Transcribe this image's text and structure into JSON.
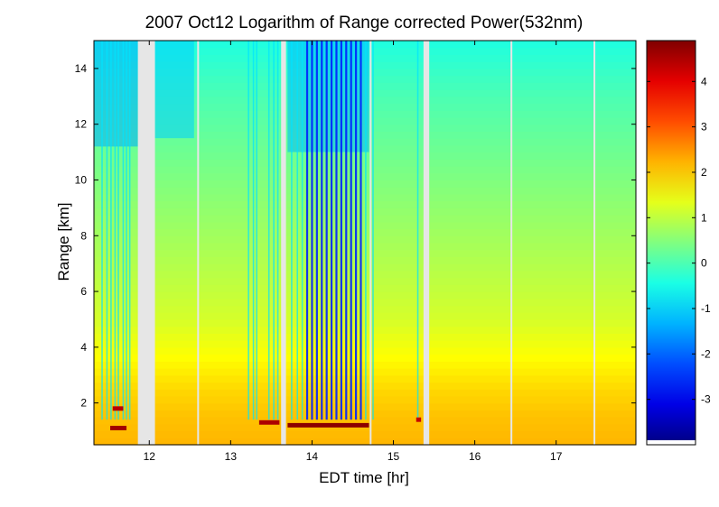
{
  "chart_data": {
    "type": "heatmap",
    "title": "2007 Oct12  Logarithm of Range corrected Power(532nm)",
    "xlabel": "EDT time [hr]",
    "ylabel": "Range [km]",
    "xlim": [
      11.32,
      17.98
    ],
    "ylim": [
      0.5,
      15.0
    ],
    "xticks": [
      12,
      13,
      14,
      15,
      16,
      17
    ],
    "xtick_labels": [
      "12",
      "13",
      "14",
      "15",
      "16",
      "17"
    ],
    "yticks": [
      2,
      4,
      6,
      8,
      10,
      12,
      14
    ],
    "ytick_labels": [
      "2",
      "4",
      "6",
      "8",
      "10",
      "12",
      "14"
    ],
    "colorbar": {
      "colormap": "jet",
      "lim": [
        -4.0,
        4.9
      ],
      "ticks": [
        -3,
        -2,
        -1,
        0,
        1,
        2,
        3,
        4
      ],
      "tick_labels": [
        "-3",
        "-2",
        "-1",
        "0",
        "1",
        "2",
        "3",
        "4"
      ]
    },
    "profile": {
      "range_km": [
        0.5,
        1.5,
        2.5,
        3.5,
        5,
        7,
        9,
        11,
        13,
        15
      ],
      "log_power": [
        2.2,
        2.1,
        1.9,
        1.6,
        1.2,
        0.9,
        0.6,
        0.3,
        0.0,
        -0.4
      ]
    },
    "missing_data_intervals_hr": [
      [
        11.86,
        12.07
      ],
      [
        13.62,
        13.68
      ],
      [
        15.37,
        15.44
      ]
    ],
    "thin_gaps_hr": [
      12.6,
      14.72,
      16.45,
      17.47
    ],
    "cloud_streaks_hr": [
      11.42,
      11.48,
      11.53,
      11.58,
      11.62,
      11.68,
      11.72,
      11.76,
      13.22,
      13.28,
      13.32,
      13.47,
      13.53,
      13.58,
      13.75,
      13.82,
      13.88,
      13.94,
      14.0,
      14.06,
      14.12,
      14.18,
      14.24,
      14.3,
      14.36,
      14.42,
      14.48,
      14.54,
      14.6,
      14.66,
      14.75,
      15.3
    ],
    "cloud_layer_segments": [
      {
        "x": [
          11.52,
          11.72
        ],
        "range_km": 1.1,
        "value": 4.6
      },
      {
        "x": [
          11.55,
          11.68
        ],
        "range_km": 1.8,
        "value": 4.4
      },
      {
        "x": [
          13.35,
          13.6
        ],
        "range_km": 1.3,
        "value": 4.5
      },
      {
        "x": [
          13.7,
          14.7
        ],
        "range_km": 1.2,
        "value": 4.8
      },
      {
        "x": [
          15.28,
          15.34
        ],
        "range_km": 1.4,
        "value": 4.3
      }
    ]
  }
}
